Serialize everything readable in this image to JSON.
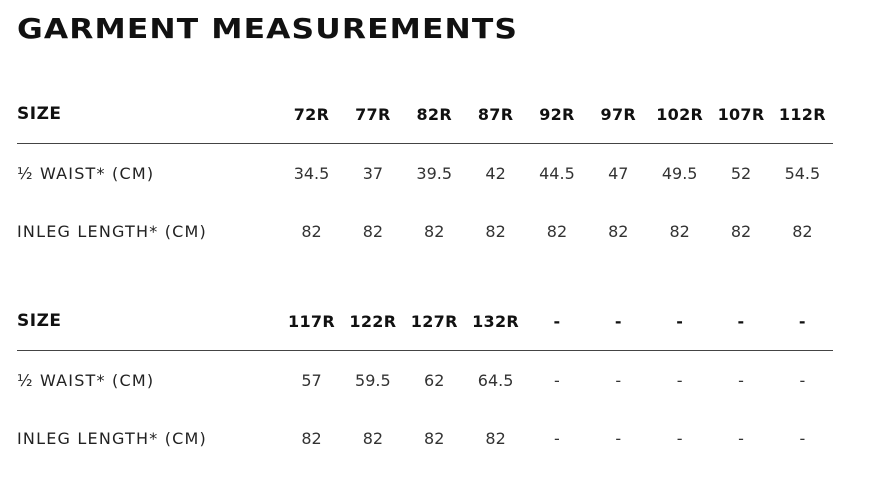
{
  "title": "GARMENT MEASUREMENTS",
  "tables": [
    {
      "header": {
        "label": "SIZE",
        "values": [
          "72R",
          "77R",
          "82R",
          "87R",
          "92R",
          "97R",
          "102R",
          "107R",
          "112R"
        ]
      },
      "rows": [
        {
          "label": "½ WAIST* (CM)",
          "values": [
            "34.5",
            "37",
            "39.5",
            "42",
            "44.5",
            "47",
            "49.5",
            "52",
            "54.5"
          ]
        },
        {
          "label": "INLEG LENGTH* (CM)",
          "values": [
            "82",
            "82",
            "82",
            "82",
            "82",
            "82",
            "82",
            "82",
            "82"
          ]
        }
      ]
    },
    {
      "header": {
        "label": "SIZE",
        "values": [
          "117R",
          "122R",
          "127R",
          "132R",
          "-",
          "-",
          "-",
          "-",
          "-"
        ]
      },
      "rows": [
        {
          "label": "½ WAIST* (CM)",
          "values": [
            "57",
            "59.5",
            "62",
            "64.5",
            "-",
            "-",
            "-",
            "-",
            "-"
          ]
        },
        {
          "label": "INLEG LENGTH* (CM)",
          "values": [
            "82",
            "82",
            "82",
            "82",
            "-",
            "-",
            "-",
            "-",
            "-"
          ]
        }
      ]
    }
  ]
}
